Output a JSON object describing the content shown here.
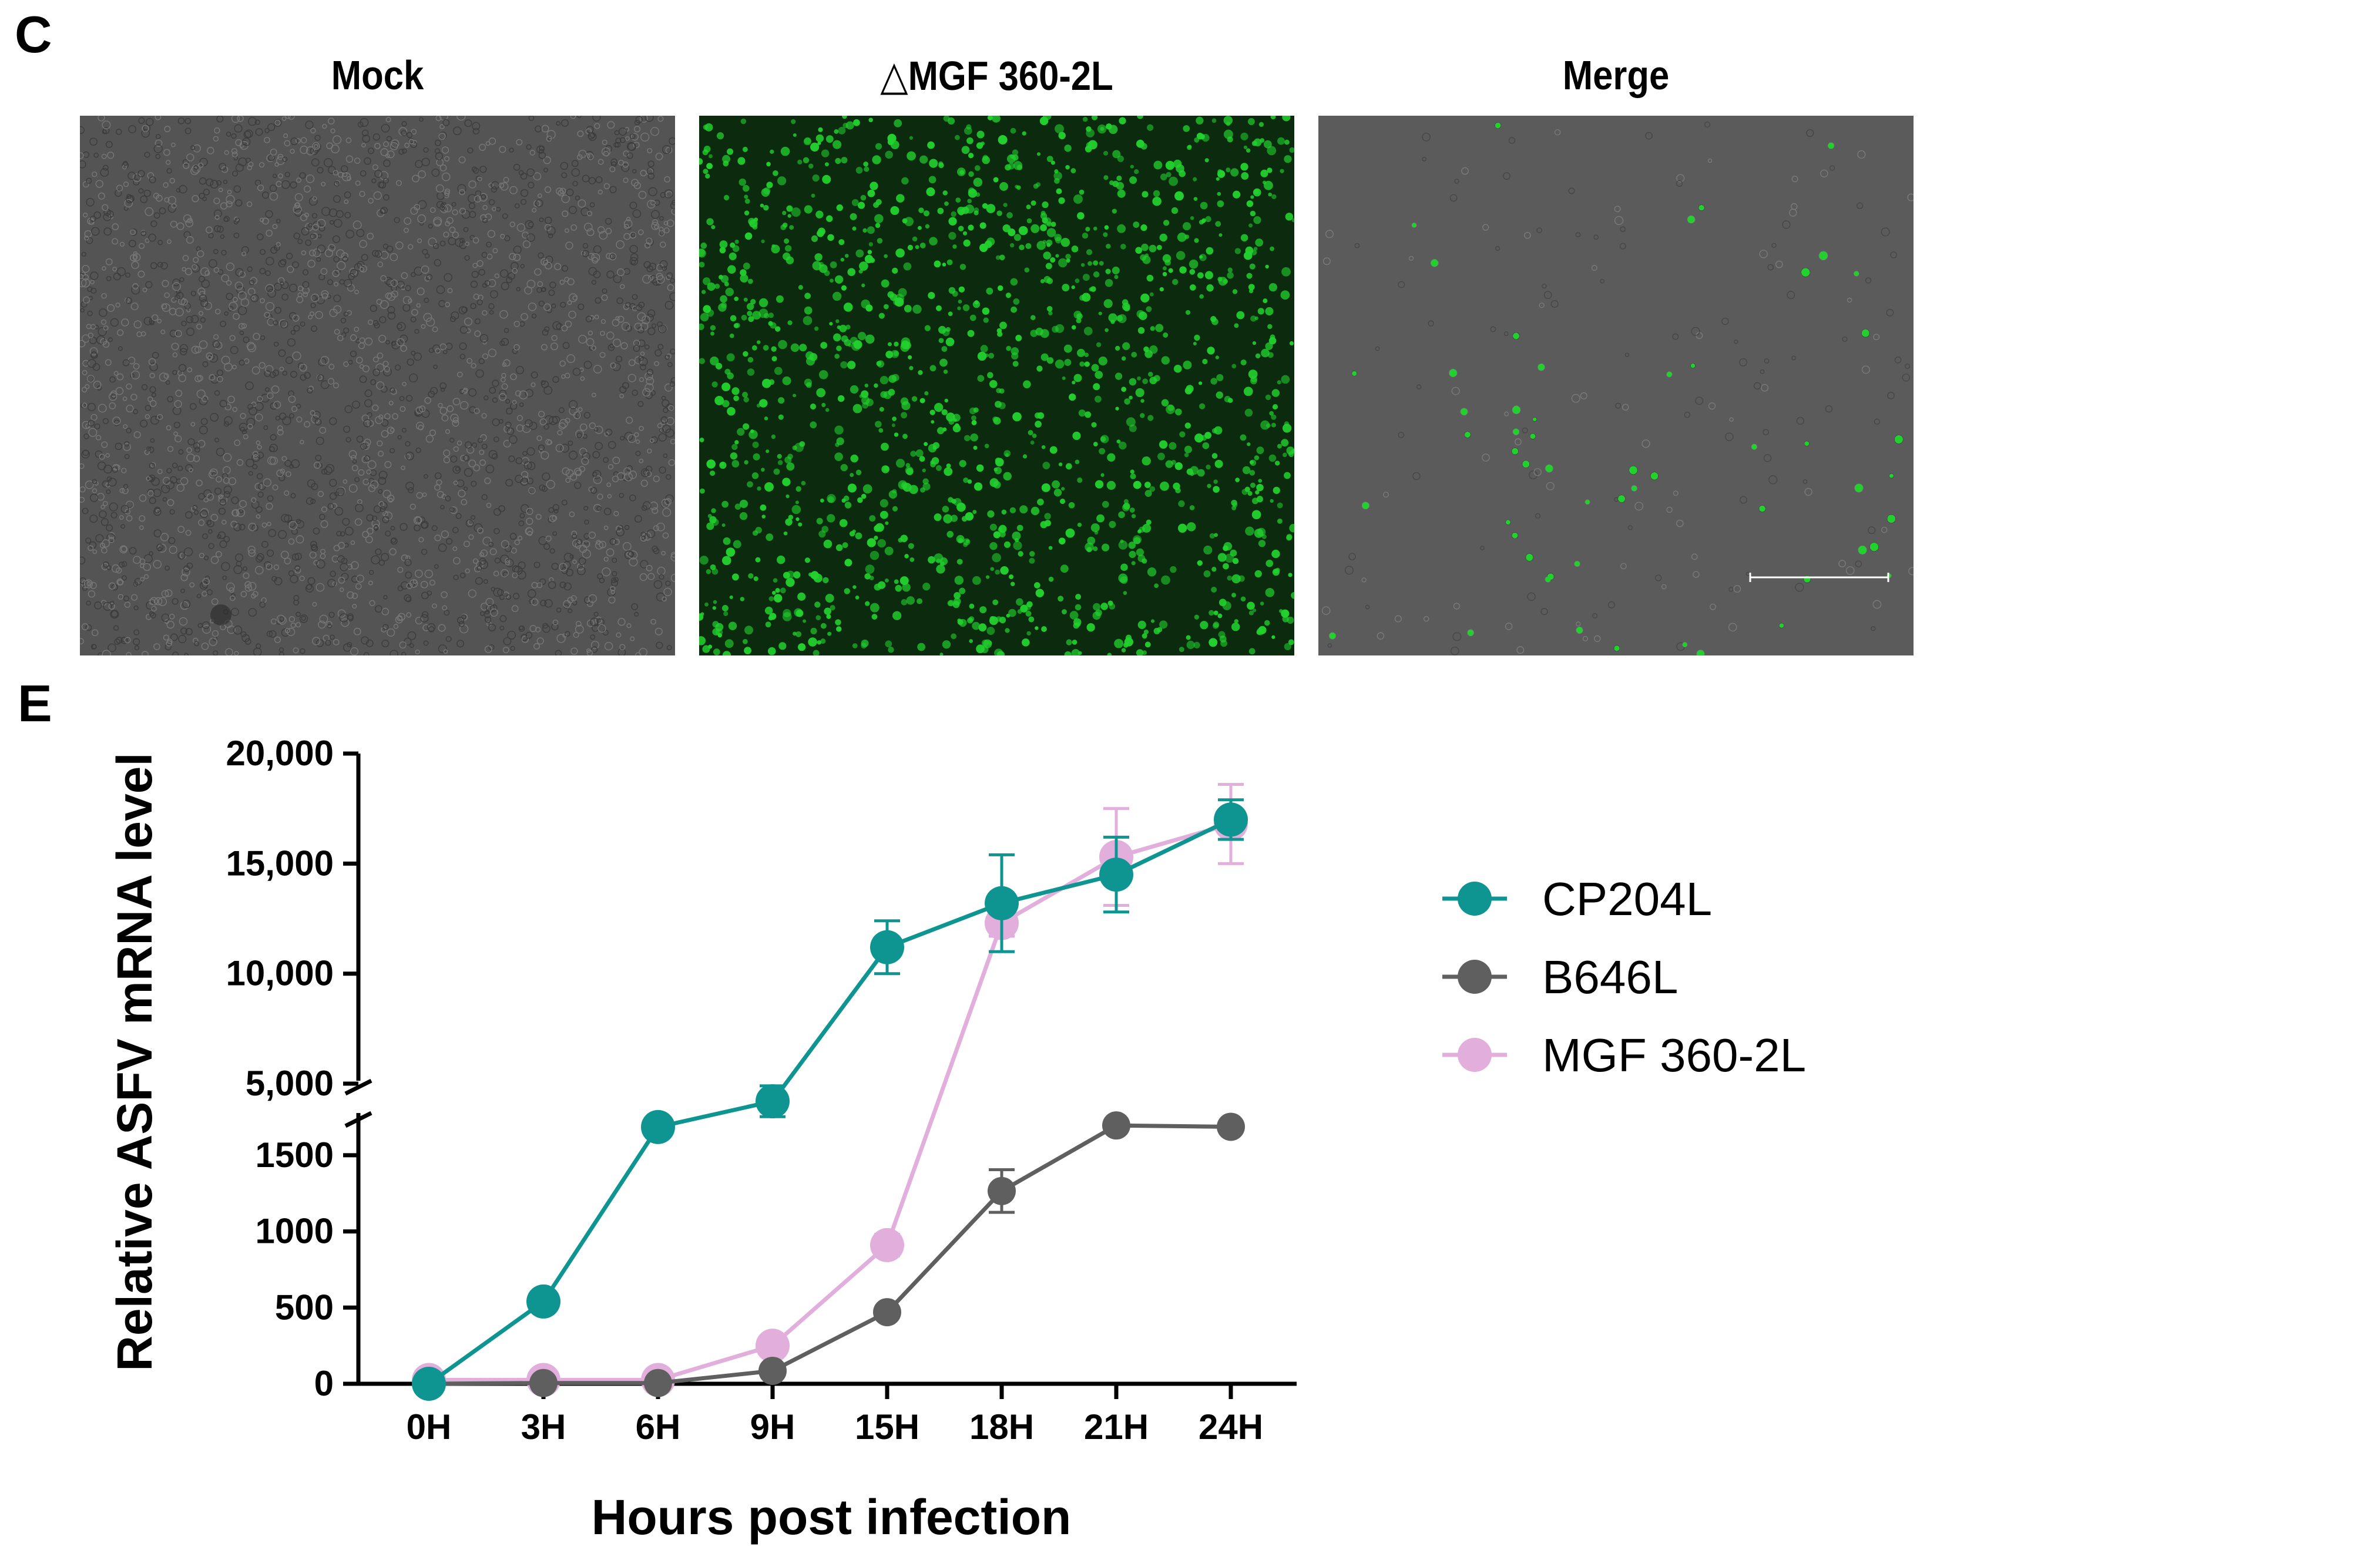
{
  "panel_c": {
    "letter": "C",
    "images": [
      {
        "title": "Mock",
        "kind": "brightfield"
      },
      {
        "title": "△MGF 360-2L",
        "kind": "fluorescence"
      },
      {
        "title": "Merge",
        "kind": "merge"
      }
    ],
    "colors": {
      "fluorescence": "#22d12e",
      "brightfield": "#4d4d4d"
    }
  },
  "chart_data": {
    "panel_letter": "E",
    "type": "line",
    "title": "",
    "xlabel": "Hours post infection",
    "ylabel": "Relative ASFV mRNA level",
    "categories": [
      "0H",
      "3H",
      "6H",
      "9H",
      "15H",
      "18H",
      "21H",
      "24H"
    ],
    "y_axis": {
      "broken": true,
      "lower_segment": {
        "range": [
          0,
          1700
        ],
        "ticks": [
          0,
          500,
          1000,
          1500
        ],
        "tick_labels": [
          "0",
          "500",
          "1000",
          "1500"
        ]
      },
      "upper_segment": {
        "range": [
          3000,
          20000
        ],
        "ticks": [
          5000,
          10000,
          15000,
          20000
        ],
        "tick_labels": [
          "5,000",
          "10,000",
          "15,000",
          "20,000"
        ]
      }
    },
    "series": [
      {
        "name": "CP204L",
        "color": "#0f9591",
        "values": [
          0,
          540,
          2700,
          4200,
          11200,
          13200,
          14500,
          17000
        ],
        "errors": [
          0,
          0,
          0,
          700,
          1200,
          2200,
          1700,
          900
        ]
      },
      {
        "name": "B646L",
        "color": "#5f5f5f",
        "values": [
          0,
          5,
          5,
          85,
          470,
          1265,
          2000,
          2600
        ],
        "errors": [
          0,
          0,
          0,
          0,
          0,
          140,
          0,
          0
        ]
      },
      {
        "name": "MGF 360-2L",
        "color": "#e2aedb",
        "values": [
          25,
          25,
          25,
          250,
          910,
          12300,
          15300,
          16800
        ],
        "errors": [
          0,
          0,
          0,
          0,
          70,
          600,
          2200,
          1800
        ]
      }
    ],
    "legend_position": "right",
    "grid": false
  }
}
